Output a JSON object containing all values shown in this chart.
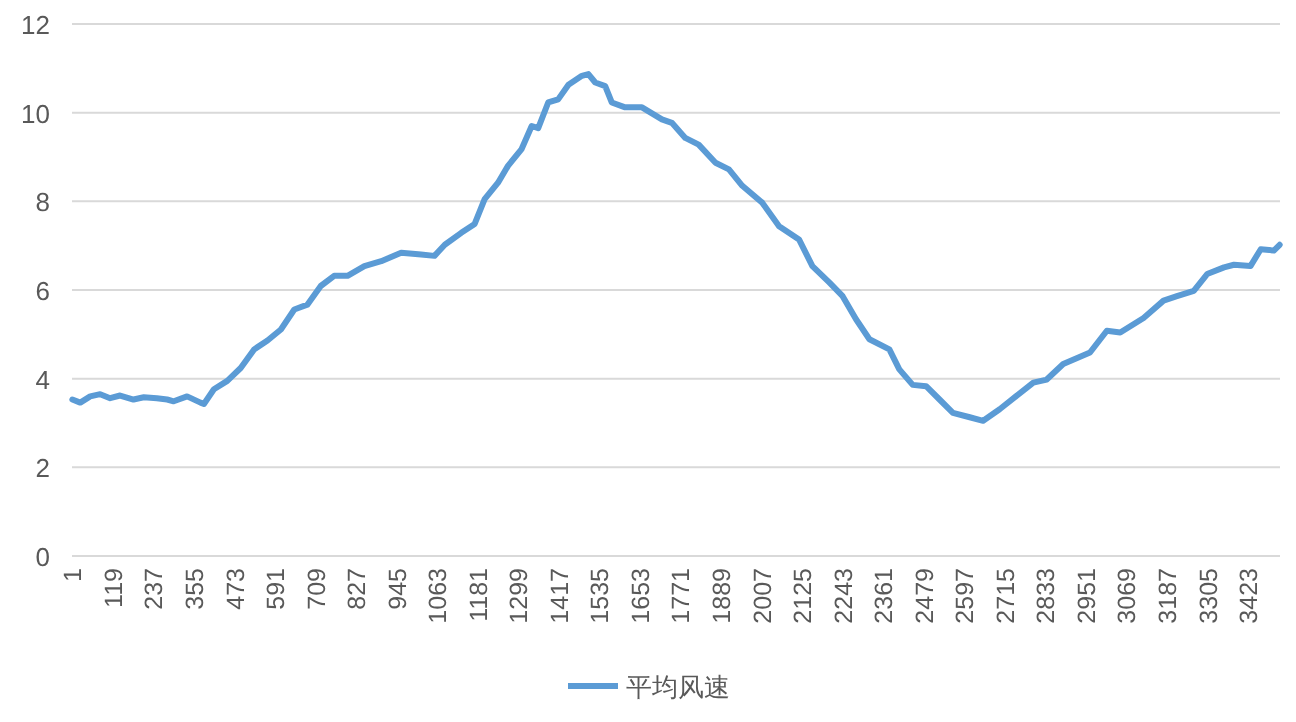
{
  "chart_data": {
    "type": "line",
    "x": [
      1,
      24,
      53,
      82,
      111,
      140,
      179,
      209,
      247,
      277,
      296,
      335,
      374,
      384,
      413,
      452,
      491,
      530,
      569,
      608,
      647,
      685,
      724,
      763,
      802,
      851,
      900,
      958,
      1016,
      1055,
      1085,
      1133,
      1172,
      1201,
      1240,
      1269,
      1308,
      1338,
      1357,
      1386,
      1415,
      1445,
      1484,
      1503,
      1523,
      1552,
      1571,
      1610,
      1659,
      1717,
      1746,
      1785,
      1824,
      1873,
      1912,
      1951,
      2009,
      2058,
      2116,
      2155,
      2204,
      2243,
      2282,
      2321,
      2379,
      2408,
      2447,
      2486,
      2525,
      2564,
      2613,
      2652,
      2700,
      2749,
      2798,
      2837,
      2885,
      2963,
      3012,
      3051,
      3119,
      3177,
      3216,
      3265,
      3304,
      3353,
      3382,
      3430,
      3460,
      3498,
      3515
    ],
    "series": [
      {
        "name": "平均风速",
        "color": "#5b9bd5",
        "values": [
          3.53,
          3.46,
          3.6,
          3.65,
          3.56,
          3.62,
          3.53,
          3.58,
          3.56,
          3.53,
          3.49,
          3.6,
          3.46,
          3.43,
          3.76,
          3.95,
          4.24,
          4.66,
          4.86,
          5.11,
          5.56,
          5.67,
          6.09,
          6.32,
          6.32,
          6.54,
          6.65,
          6.84,
          6.8,
          6.77,
          7.02,
          7.29,
          7.49,
          8.05,
          8.42,
          8.8,
          9.17,
          9.7,
          9.65,
          10.23,
          10.3,
          10.63,
          10.83,
          10.87,
          10.68,
          10.6,
          10.23,
          10.12,
          10.12,
          9.85,
          9.77,
          9.43,
          9.28,
          8.87,
          8.72,
          8.35,
          7.97,
          7.44,
          7.14,
          6.54,
          6.17,
          5.86,
          5.34,
          4.89,
          4.66,
          4.21,
          3.86,
          3.83,
          3.53,
          3.23,
          3.13,
          3.05,
          3.31,
          3.61,
          3.91,
          3.98,
          4.33,
          4.59,
          5.08,
          5.04,
          5.37,
          5.76,
          5.86,
          5.98,
          6.36,
          6.51,
          6.57,
          6.54,
          6.92,
          6.89,
          7.02
        ]
      }
    ],
    "xlim": [
      0,
      3516
    ],
    "xticks": [
      1,
      119,
      237,
      355,
      473,
      591,
      709,
      827,
      945,
      1063,
      1181,
      1299,
      1417,
      1535,
      1653,
      1771,
      1889,
      2007,
      2125,
      2243,
      2361,
      2479,
      2597,
      2715,
      2833,
      2951,
      3069,
      3187,
      3305,
      3423
    ],
    "ylim": [
      0,
      12
    ],
    "yticks": [
      0,
      2,
      4,
      6,
      8,
      10,
      12
    ],
    "grid": "y",
    "legend": "bottom"
  }
}
